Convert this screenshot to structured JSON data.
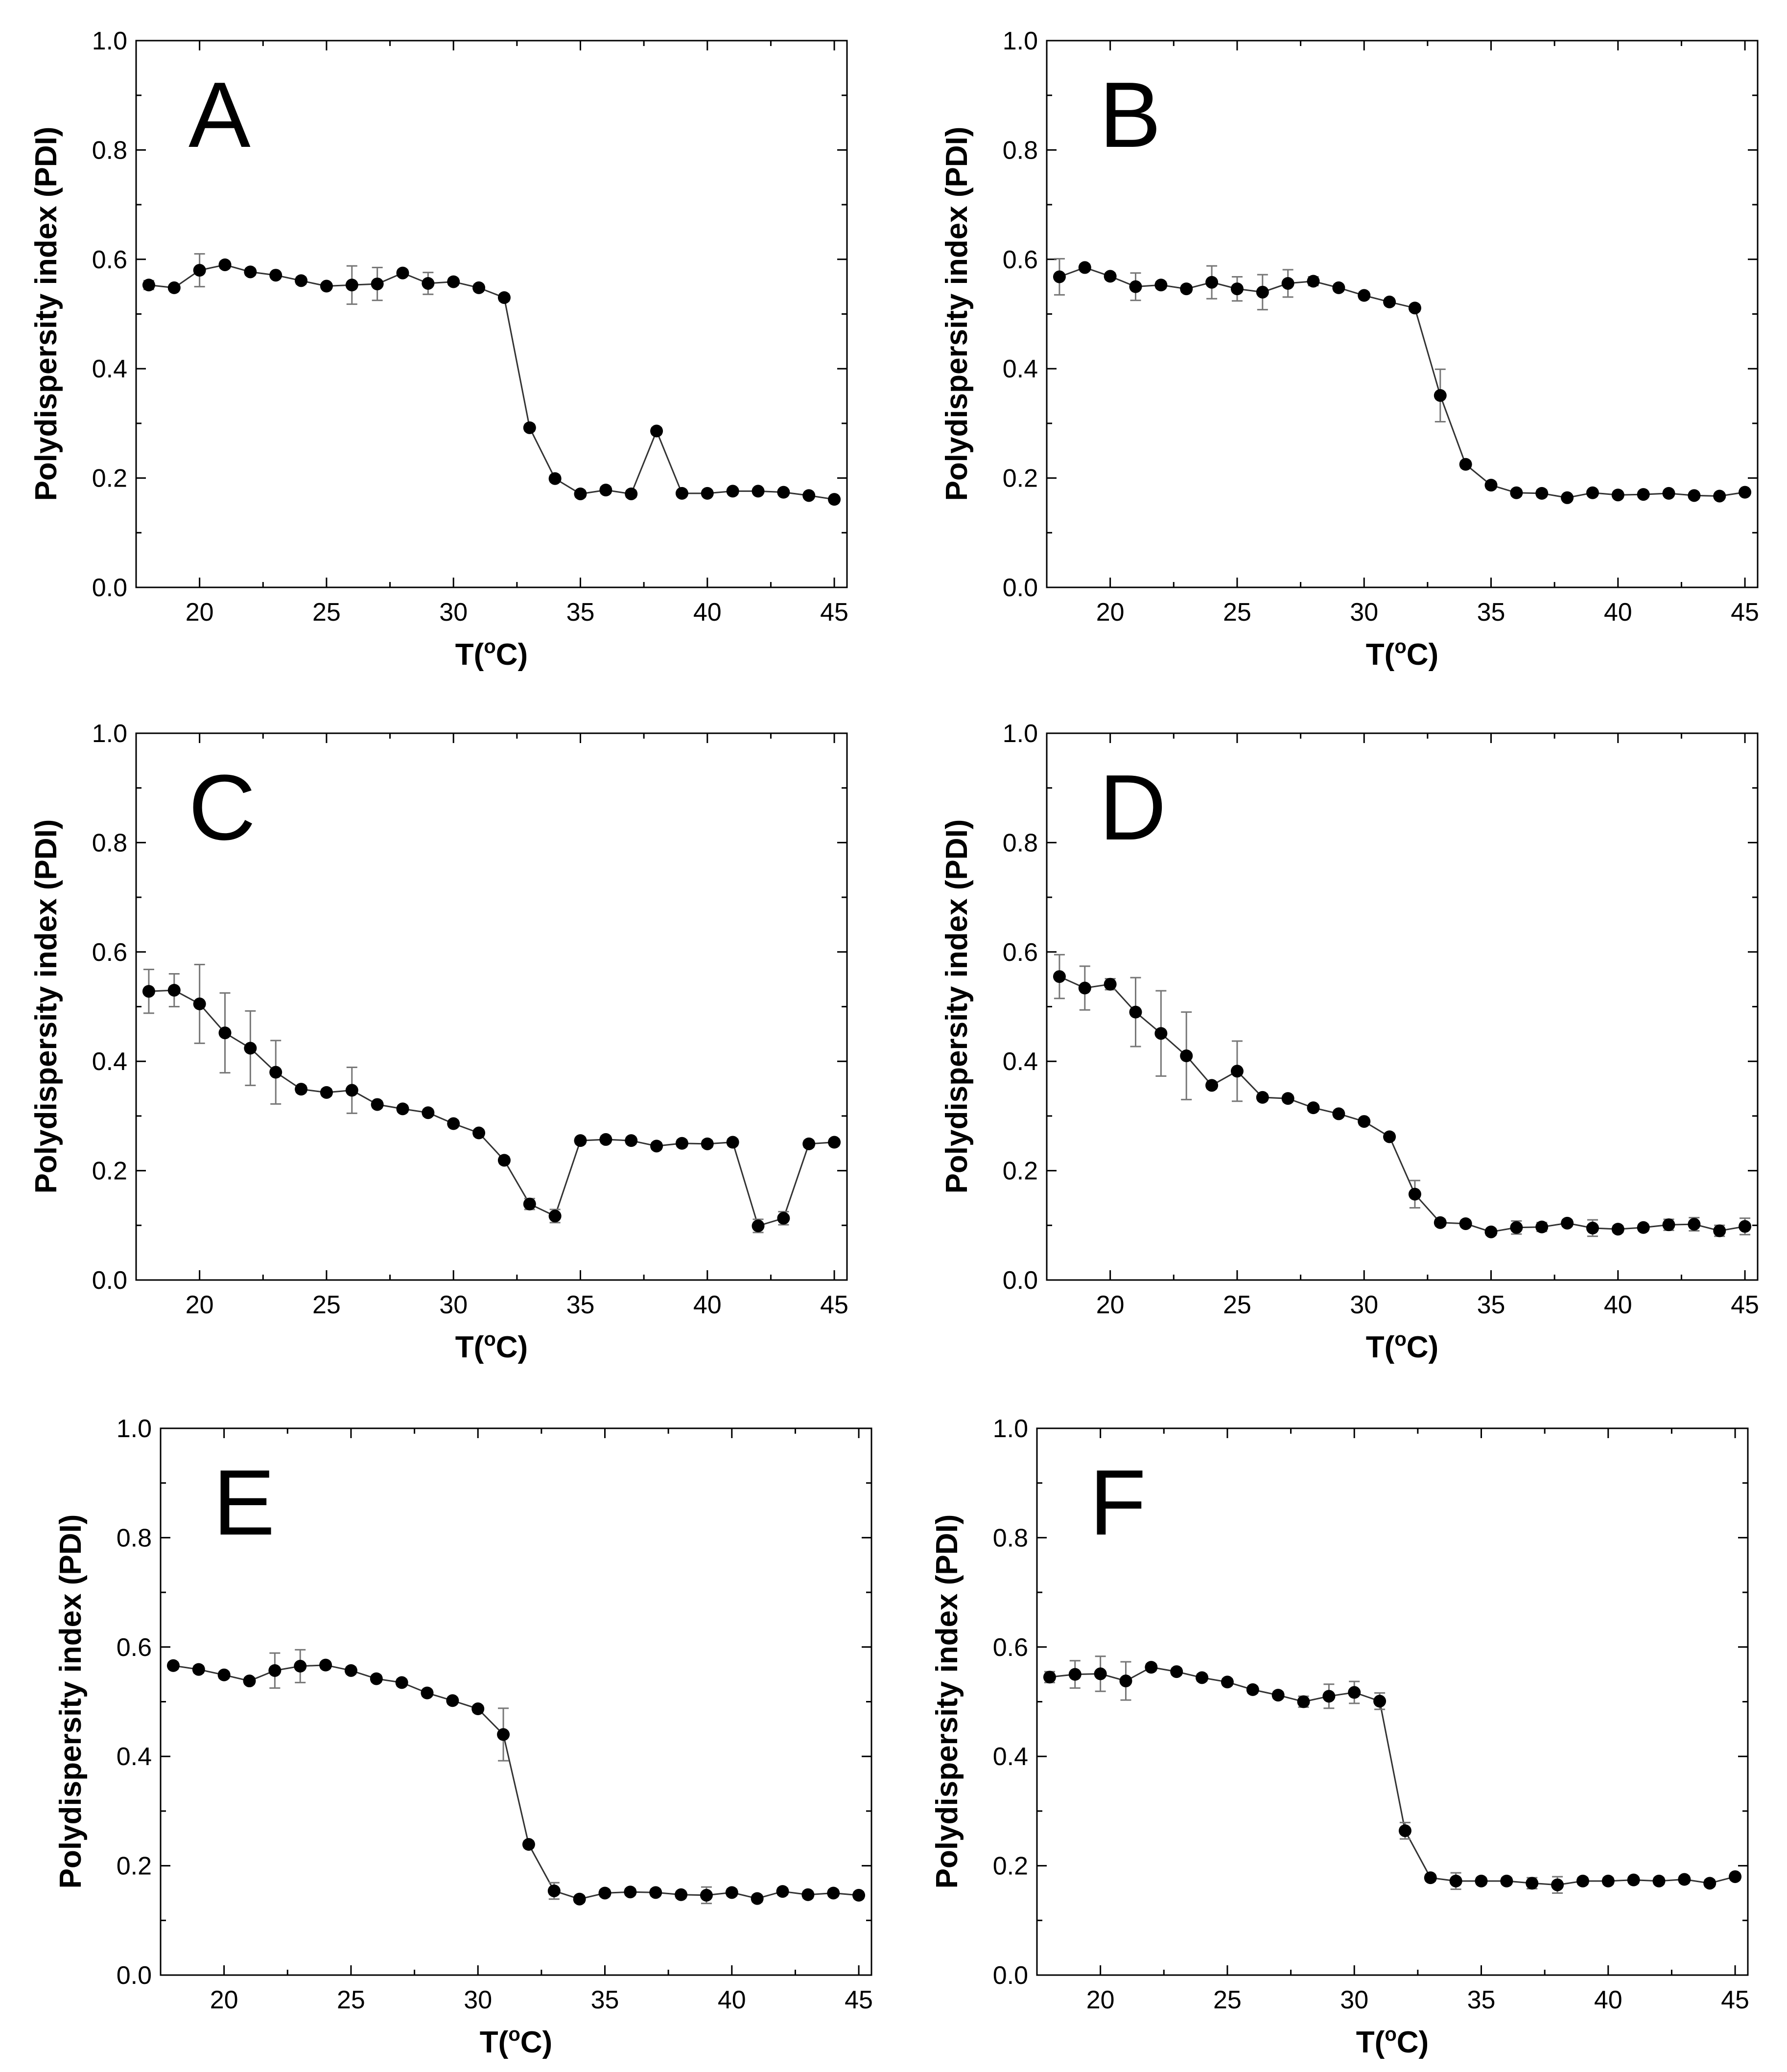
{
  "chart_data": [
    {
      "type": "scatter",
      "panel_label": "A",
      "xlabel": "T(oC)",
      "xlabel_base": "T(",
      "xlabel_sup": "o",
      "xlabel_end": "C)",
      "ylabel": "Polydispersity index (PDI)",
      "xlim": [
        17.5,
        45.5
      ],
      "ylim": [
        0.0,
        1.0
      ],
      "xticks": [
        "20",
        "25",
        "30",
        "35",
        "40",
        "45"
      ],
      "yticks": [
        "0.0",
        "0.2",
        "0.4",
        "0.6",
        "0.8",
        "1.0"
      ],
      "x": [
        18,
        19,
        20,
        21,
        22,
        23,
        24,
        25,
        26,
        27,
        28,
        29,
        30,
        31,
        32,
        33,
        34,
        35,
        36,
        37,
        38,
        39,
        40,
        41,
        42,
        43,
        44,
        45
      ],
      "y": [
        0.553,
        0.548,
        0.58,
        0.59,
        0.577,
        0.571,
        0.561,
        0.551,
        0.553,
        0.555,
        0.575,
        0.556,
        0.559,
        0.548,
        0.53,
        0.292,
        0.199,
        0.171,
        0.178,
        0.171,
        0.286,
        0.172,
        0.172,
        0.176,
        0.176,
        0.174,
        0.168,
        0.161
      ],
      "err": [
        0.008,
        0.005,
        0.03,
        0.006,
        0.006,
        0.005,
        0.006,
        0.005,
        0.035,
        0.03,
        0.006,
        0.02,
        0.006,
        0.006,
        0.006,
        0.006,
        0.006,
        0.006,
        0.006,
        0.006,
        0.006,
        0.005,
        0.005,
        0.005,
        0.005,
        0.005,
        0.005,
        0.005
      ]
    },
    {
      "type": "scatter",
      "panel_label": "B",
      "xlabel": "T(oC)",
      "xlabel_base": "T(",
      "xlabel_sup": "o",
      "xlabel_end": "C)",
      "ylabel": "Polydispersity index (PDI)",
      "xlim": [
        17.5,
        45.5
      ],
      "ylim": [
        0.0,
        1.0
      ],
      "xticks": [
        "20",
        "25",
        "30",
        "35",
        "40",
        "45"
      ],
      "yticks": [
        "0.0",
        "0.2",
        "0.4",
        "0.6",
        "0.8",
        "1.0"
      ],
      "x": [
        18,
        19,
        20,
        21,
        22,
        23,
        24,
        25,
        26,
        27,
        28,
        29,
        30,
        31,
        32,
        33,
        34,
        35,
        36,
        37,
        38,
        39,
        40,
        41,
        42,
        43,
        44,
        45
      ],
      "y": [
        0.568,
        0.585,
        0.569,
        0.55,
        0.553,
        0.546,
        0.558,
        0.546,
        0.54,
        0.556,
        0.56,
        0.548,
        0.534,
        0.522,
        0.511,
        0.351,
        0.225,
        0.187,
        0.173,
        0.172,
        0.164,
        0.173,
        0.169,
        0.17,
        0.172,
        0.168,
        0.167,
        0.174
      ],
      "err": [
        0.033,
        0.006,
        0.006,
        0.025,
        0.006,
        0.006,
        0.03,
        0.022,
        0.032,
        0.025,
        0.008,
        0.006,
        0.006,
        0.006,
        0.006,
        0.048,
        0.006,
        0.006,
        0.006,
        0.006,
        0.005,
        0.005,
        0.005,
        0.005,
        0.005,
        0.005,
        0.005,
        0.005
      ]
    },
    {
      "type": "scatter",
      "panel_label": "C",
      "xlabel": "T(oC)",
      "xlabel_base": "T(",
      "xlabel_sup": "o",
      "xlabel_end": "C)",
      "ylabel": "Polydispersity index (PDI)",
      "xlim": [
        17.5,
        45.5
      ],
      "ylim": [
        0.0,
        1.0
      ],
      "xticks": [
        "20",
        "25",
        "30",
        "35",
        "40",
        "45"
      ],
      "yticks": [
        "0.0",
        "0.2",
        "0.4",
        "0.6",
        "0.8",
        "1.0"
      ],
      "x": [
        18,
        19,
        20,
        21,
        22,
        23,
        24,
        25,
        26,
        27,
        28,
        29,
        30,
        31,
        32,
        33,
        34,
        35,
        36,
        37,
        38,
        39,
        40,
        41,
        42,
        43,
        44,
        45
      ],
      "y": [
        0.528,
        0.53,
        0.505,
        0.452,
        0.424,
        0.38,
        0.349,
        0.343,
        0.347,
        0.321,
        0.313,
        0.306,
        0.286,
        0.269,
        0.219,
        0.139,
        0.117,
        0.255,
        0.257,
        0.255,
        0.245,
        0.25,
        0.249,
        0.252,
        0.099,
        0.113,
        0.249,
        0.252
      ],
      "err": [
        0.04,
        0.03,
        0.072,
        0.073,
        0.068,
        0.058,
        0.006,
        0.006,
        0.042,
        0.006,
        0.006,
        0.006,
        0.006,
        0.006,
        0.006,
        0.01,
        0.012,
        0.006,
        0.006,
        0.006,
        0.006,
        0.006,
        0.006,
        0.006,
        0.012,
        0.012,
        0.006,
        0.006
      ]
    },
    {
      "type": "scatter",
      "panel_label": "D",
      "xlabel": "T(oC)",
      "xlabel_base": "T(",
      "xlabel_sup": "o",
      "xlabel_end": "C)",
      "ylabel": "Polydispersity index (PDI)",
      "xlim": [
        17.5,
        45.5
      ],
      "ylim": [
        0.0,
        1.0
      ],
      "xticks": [
        "20",
        "25",
        "30",
        "35",
        "40",
        "45"
      ],
      "yticks": [
        "0.0",
        "0.2",
        "0.4",
        "0.6",
        "0.8",
        "1.0"
      ],
      "x": [
        18,
        19,
        20,
        21,
        22,
        23,
        24,
        25,
        26,
        27,
        28,
        29,
        30,
        31,
        32,
        33,
        34,
        35,
        36,
        37,
        38,
        39,
        40,
        41,
        42,
        43,
        44,
        45
      ],
      "y": [
        0.555,
        0.534,
        0.541,
        0.49,
        0.451,
        0.41,
        0.356,
        0.382,
        0.334,
        0.332,
        0.315,
        0.304,
        0.29,
        0.262,
        0.157,
        0.105,
        0.103,
        0.088,
        0.096,
        0.097,
        0.104,
        0.095,
        0.093,
        0.096,
        0.101,
        0.102,
        0.09,
        0.098
      ],
      "err": [
        0.04,
        0.04,
        0.01,
        0.063,
        0.078,
        0.08,
        0.006,
        0.055,
        0.006,
        0.006,
        0.006,
        0.006,
        0.006,
        0.006,
        0.025,
        0.006,
        0.006,
        0.006,
        0.012,
        0.008,
        0.006,
        0.015,
        0.006,
        0.006,
        0.01,
        0.012,
        0.01,
        0.015
      ]
    },
    {
      "type": "scatter",
      "panel_label": "E",
      "xlabel": "T(oC)",
      "xlabel_base": "T(",
      "xlabel_sup": "o",
      "xlabel_end": "C)",
      "ylabel": "Polydispersity index (PDI)",
      "xlim": [
        17.5,
        45.5
      ],
      "ylim": [
        0.0,
        1.0
      ],
      "xticks": [
        "20",
        "25",
        "30",
        "35",
        "40",
        "45"
      ],
      "yticks": [
        "0.0",
        "0.2",
        "0.4",
        "0.6",
        "0.8",
        "1.0"
      ],
      "x": [
        18,
        19,
        20,
        21,
        22,
        23,
        24,
        25,
        26,
        27,
        28,
        29,
        30,
        31,
        32,
        33,
        34,
        35,
        36,
        37,
        38,
        39,
        40,
        41,
        42,
        43,
        44,
        45
      ],
      "y": [
        0.566,
        0.559,
        0.549,
        0.538,
        0.557,
        0.565,
        0.567,
        0.557,
        0.542,
        0.535,
        0.516,
        0.502,
        0.487,
        0.44,
        0.239,
        0.154,
        0.139,
        0.15,
        0.152,
        0.151,
        0.147,
        0.146,
        0.151,
        0.14,
        0.153,
        0.147,
        0.15,
        0.146
      ],
      "err": [
        0.006,
        0.006,
        0.006,
        0.006,
        0.032,
        0.03,
        0.006,
        0.006,
        0.006,
        0.006,
        0.006,
        0.006,
        0.006,
        0.048,
        0.006,
        0.015,
        0.006,
        0.006,
        0.006,
        0.006,
        0.006,
        0.015,
        0.006,
        0.006,
        0.006,
        0.006,
        0.006,
        0.006
      ]
    },
    {
      "type": "scatter",
      "panel_label": "F",
      "xlabel": "T(oC)",
      "xlabel_base": "T(",
      "xlabel_sup": "o",
      "xlabel_end": "C)",
      "ylabel": "Polydispersity index (PDI)",
      "xlim": [
        17.5,
        45.5
      ],
      "ylim": [
        0.0,
        1.0
      ],
      "xticks": [
        "20",
        "25",
        "30",
        "35",
        "40",
        "45"
      ],
      "yticks": [
        "0.0",
        "0.2",
        "0.4",
        "0.6",
        "0.8",
        "1.0"
      ],
      "x": [
        18,
        19,
        20,
        21,
        22,
        23,
        24,
        25,
        26,
        27,
        28,
        29,
        30,
        31,
        32,
        33,
        34,
        35,
        36,
        37,
        38,
        39,
        40,
        41,
        42,
        43,
        44,
        45
      ],
      "y": [
        0.545,
        0.55,
        0.551,
        0.538,
        0.563,
        0.555,
        0.544,
        0.536,
        0.522,
        0.512,
        0.5,
        0.51,
        0.517,
        0.501,
        0.264,
        0.178,
        0.172,
        0.172,
        0.172,
        0.168,
        0.165,
        0.172,
        0.172,
        0.174,
        0.172,
        0.175,
        0.168,
        0.18
      ],
      "err": [
        0.01,
        0.025,
        0.032,
        0.035,
        0.006,
        0.006,
        0.006,
        0.006,
        0.006,
        0.006,
        0.01,
        0.022,
        0.02,
        0.015,
        0.015,
        0.006,
        0.015,
        0.006,
        0.006,
        0.01,
        0.015,
        0.006,
        0.006,
        0.006,
        0.006,
        0.006,
        0.006,
        0.006
      ]
    }
  ]
}
